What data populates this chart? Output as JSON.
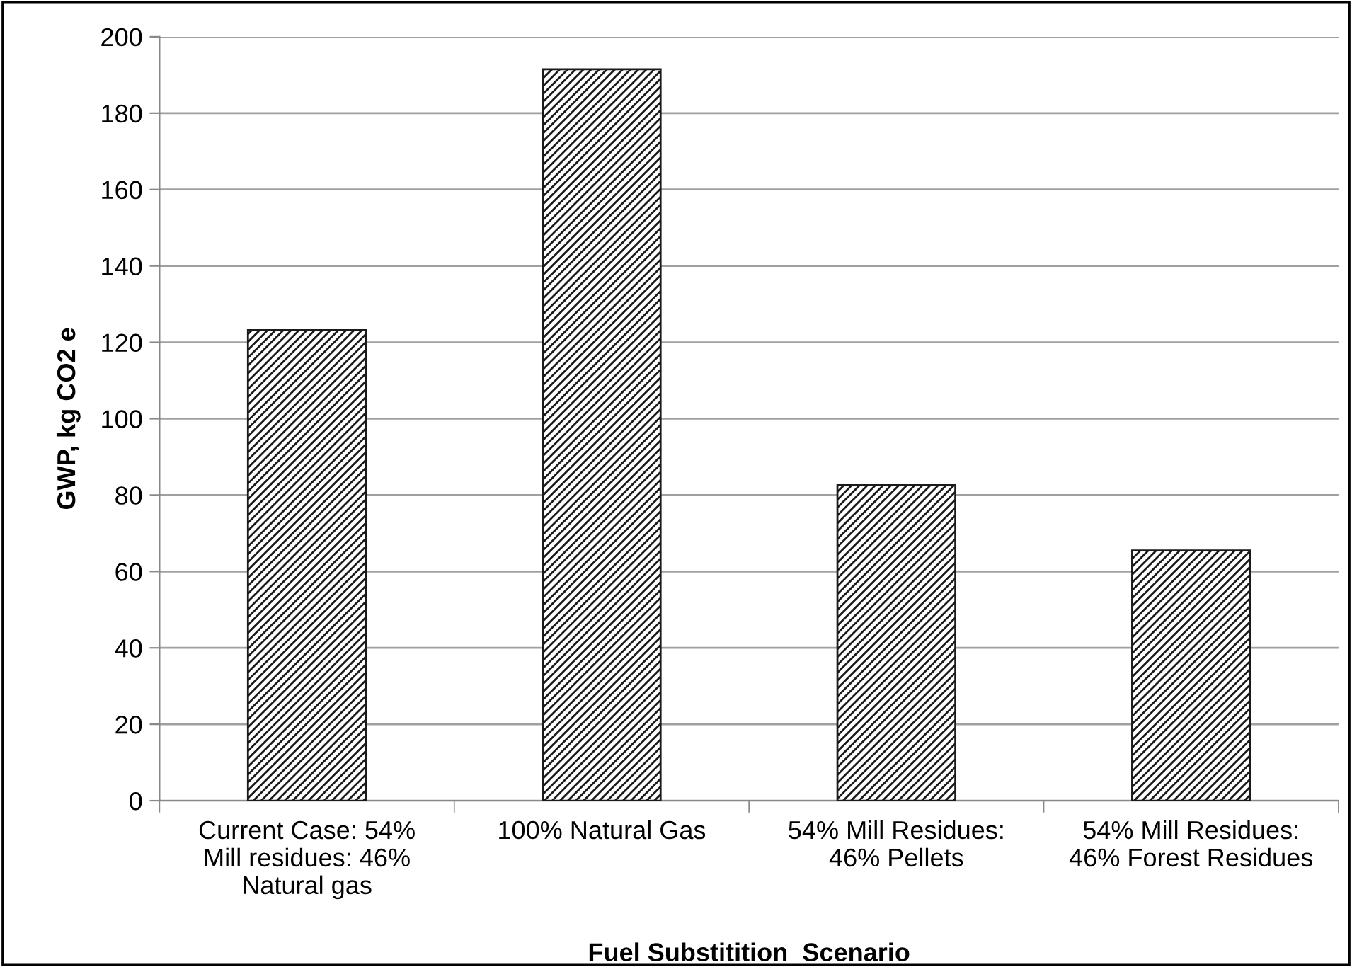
{
  "chart_data": {
    "type": "bar",
    "xlabel": "Fuel Substitition  Scenario",
    "ylabel": "GWP, kg CO2 e",
    "categories": [
      "Current Case: 54%\nMill residues: 46%\nNatural gas",
      "100% Natural Gas",
      "54% Mill Residues:\n46% Pellets",
      "54% Mill Residues:\n46% Forest Residues"
    ],
    "values": [
      123.2,
      191.5,
      82.6,
      65.5
    ],
    "color": "#1a1a1a",
    "ylim": [
      0,
      200
    ],
    "yticks": [
      0,
      20,
      40,
      60,
      80,
      100,
      120,
      140,
      160,
      180,
      200
    ],
    "grid": "y",
    "legend": false
  }
}
